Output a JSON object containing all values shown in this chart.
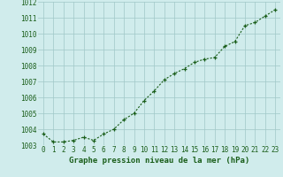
{
  "x": [
    0,
    1,
    2,
    3,
    4,
    5,
    6,
    7,
    8,
    9,
    10,
    11,
    12,
    13,
    14,
    15,
    16,
    17,
    18,
    19,
    20,
    21,
    22,
    23
  ],
  "y": [
    1003.7,
    1003.2,
    1003.2,
    1003.3,
    1003.5,
    1003.3,
    1003.7,
    1004.0,
    1004.6,
    1005.0,
    1005.8,
    1006.4,
    1007.1,
    1007.5,
    1007.8,
    1008.2,
    1008.4,
    1008.5,
    1009.2,
    1009.5,
    1010.5,
    1010.7,
    1011.1,
    1011.5
  ],
  "ylim": [
    1003.0,
    1012.0
  ],
  "yticks": [
    1003,
    1004,
    1005,
    1006,
    1007,
    1008,
    1009,
    1010,
    1011,
    1012
  ],
  "xlim": [
    -0.5,
    23.5
  ],
  "xticks": [
    0,
    1,
    2,
    3,
    4,
    5,
    6,
    7,
    8,
    9,
    10,
    11,
    12,
    13,
    14,
    15,
    16,
    17,
    18,
    19,
    20,
    21,
    22,
    23
  ],
  "xlabel": "Graphe pression niveau de la mer (hPa)",
  "line_color": "#1a5e1a",
  "marker": "+",
  "bg_color": "#d0ecec",
  "grid_color": "#a0c8c8",
  "tick_label_color": "#1a5e1a",
  "xlabel_color": "#1a5e1a",
  "xlabel_fontsize": 6.5,
  "tick_fontsize": 5.5,
  "linewidth": 0.8,
  "markersize": 3.5,
  "markeredgewidth": 0.9
}
